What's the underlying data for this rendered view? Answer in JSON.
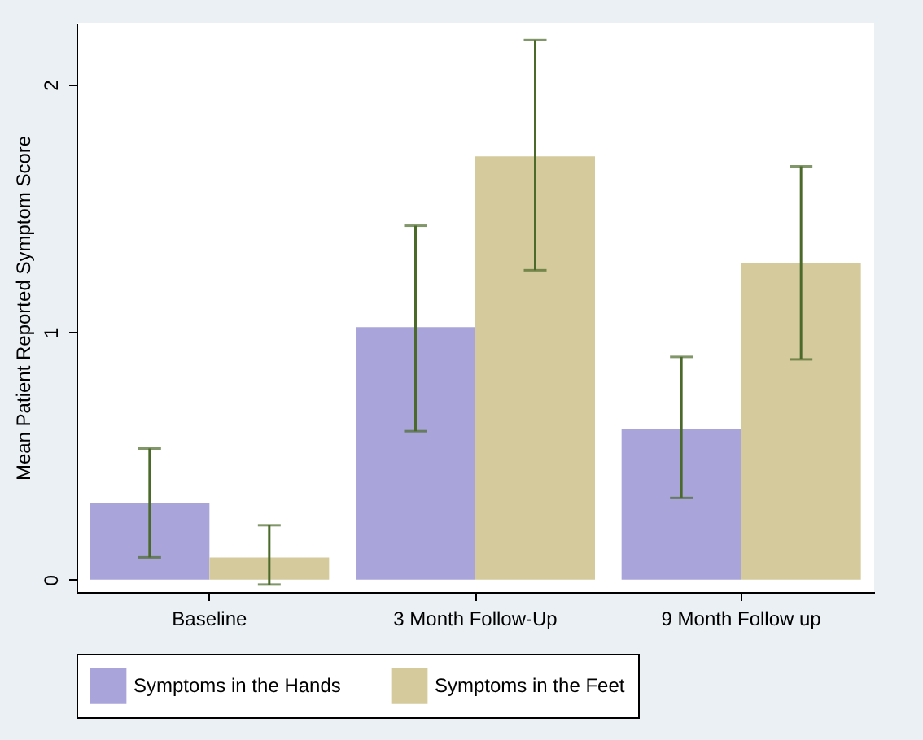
{
  "chart_data": {
    "type": "bar",
    "ylabel": "Mean Patient Reported Symptom Score",
    "categories": [
      "Baseline",
      "3 Month Follow-Up",
      "9 Month Follow up"
    ],
    "series": [
      {
        "name": "Symptoms in the Hands",
        "color": "#a9a5db",
        "values": [
          0.31,
          1.02,
          0.61
        ],
        "errors": [
          [
            0.09,
            0.53
          ],
          [
            0.6,
            1.43
          ],
          [
            0.33,
            0.9
          ]
        ]
      },
      {
        "name": "Symptoms in the Feet",
        "color": "#d5ca9c",
        "values": [
          0.09,
          1.71,
          1.28
        ],
        "errors": [
          [
            -0.02,
            0.22
          ],
          [
            1.25,
            2.18
          ],
          [
            0.89,
            1.67
          ]
        ]
      }
    ],
    "ylim": [
      -0.05,
      2.25
    ],
    "yticks": [
      0,
      1,
      2
    ],
    "grid": false,
    "legend": "bottom"
  }
}
